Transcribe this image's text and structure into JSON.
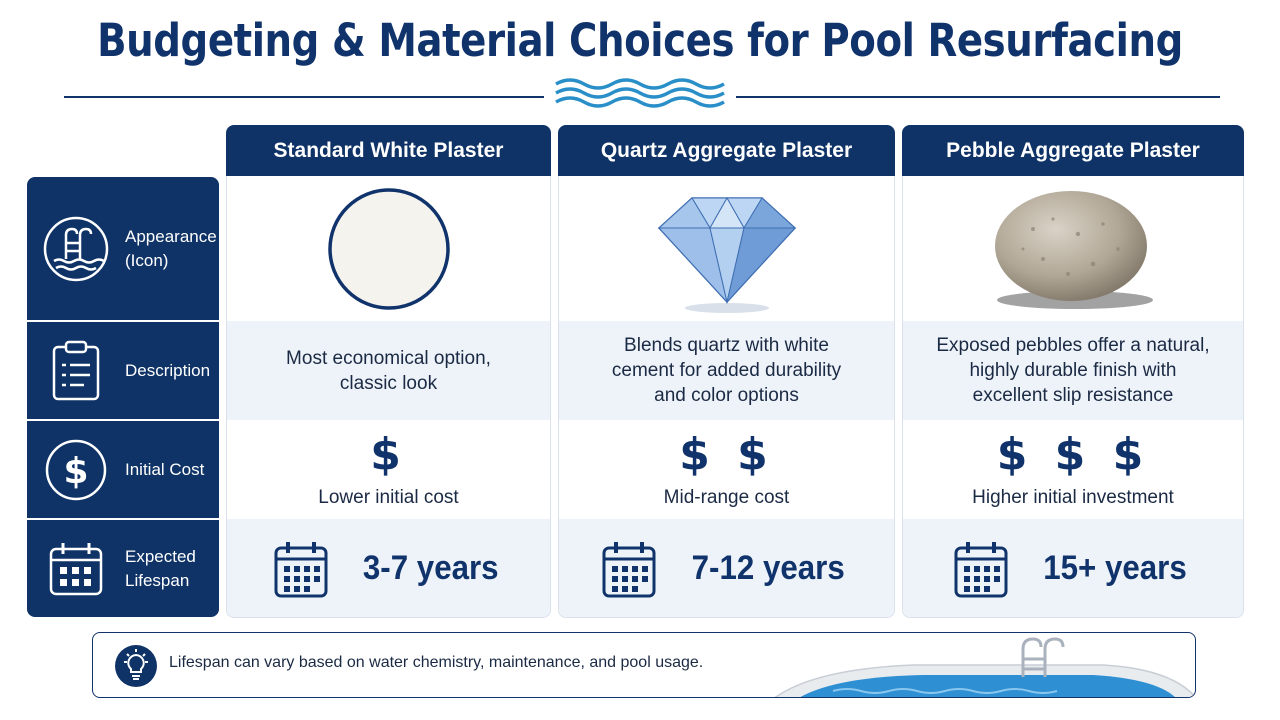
{
  "title": "Budgeting & Material Choices for Pool Resurfacing",
  "rows": [
    {
      "label": "Appearance (Icon)",
      "icon": "pool-ladder-icon"
    },
    {
      "label": "Description",
      "icon": "clipboard-icon"
    },
    {
      "label": "Initial Cost",
      "icon": "dollar-icon"
    },
    {
      "label": "Expected Lifespan",
      "icon": "calendar-icon"
    }
  ],
  "columns": [
    {
      "name": "Standard White Plaster",
      "appearance_icon": "white-plaster-circle-icon",
      "description": "Most economical option, classic look",
      "cost_symbol": "$",
      "cost_label": "Lower initial cost",
      "lifespan": "3-7 years"
    },
    {
      "name": "Quartz Aggregate Plaster",
      "appearance_icon": "diamond-icon",
      "description": "Blends quartz with white cement for added durability and color options",
      "cost_symbol": "$ $",
      "cost_label": "Mid-range cost",
      "lifespan": "7-12 years"
    },
    {
      "name": "Pebble Aggregate Plaster",
      "appearance_icon": "pebble-icon",
      "description": "Exposed pebbles offer a natural, highly durable finish with excellent slip resistance",
      "cost_symbol": "$ $ $",
      "cost_label": "Higher initial investment",
      "lifespan": "15+ years"
    }
  ],
  "note": {
    "text": "Lifespan can vary based on water chemistry, maintenance, and pool usage.",
    "icon": "lightbulb-icon",
    "image": "pool-illustration"
  },
  "colors": {
    "navy": "#0f3366",
    "shade": "#eef3f9",
    "wave": "#2a8fc8"
  }
}
